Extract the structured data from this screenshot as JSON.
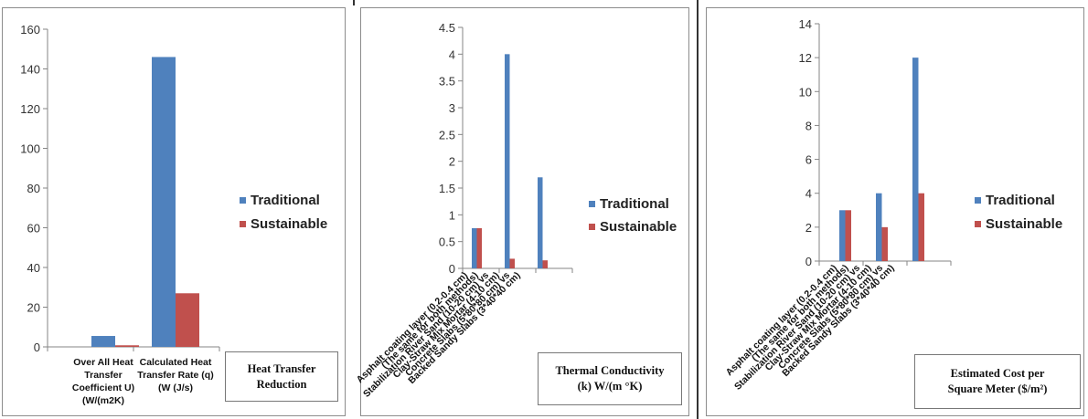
{
  "chart_data": [
    {
      "type": "bar",
      "title_lines": [
        "Heat Transfer",
        "Reduction"
      ],
      "categories": [
        [
          "Over All Heat",
          "Transfer",
          "Coefficient U)",
          "(W/(m2K)"
        ],
        [
          "Calculated Heat",
          "Transfer Rate (q)",
          "(W (J/s)"
        ]
      ],
      "series": [
        {
          "name": "Traditional",
          "values": [
            5.5,
            146
          ],
          "color": "#4f81bd"
        },
        {
          "name": "Sustainable",
          "values": [
            0.8,
            27
          ],
          "color": "#c0504d"
        }
      ],
      "ylim": [
        0,
        160
      ],
      "yticks": [
        "0",
        "20",
        "40",
        "60",
        "80",
        "100",
        "120",
        "140",
        "160"
      ],
      "grid": false,
      "legend_position": "right"
    },
    {
      "type": "bar",
      "title_lines": [
        "Thermal Conductivity",
        "(k) W/(m °K)"
      ],
      "categories": [
        "Asphalt coating layer (0.2-0.4 cm)",
        "(The same for both methods)",
        "Stabilization River Sand (10-20 cm) vs",
        "Clay-Straw Mix Mortar  (4-10 cm)",
        "Concrete Slabs (5*80*80 cm) vs",
        "Backed Sandy Slabs (3*40*40 cm)"
      ],
      "series": [
        {
          "name": "Traditional",
          "values": [
            0.75,
            null,
            4.0,
            null,
            1.7,
            null
          ],
          "color": "#4f81bd"
        },
        {
          "name": "Sustainable",
          "values": [
            0.75,
            null,
            0.18,
            null,
            0.15,
            null
          ],
          "color": "#c0504d"
        }
      ],
      "ylim": [
        0,
        4.5
      ],
      "yticks": [
        "0",
        "0.5",
        "1",
        "1.5",
        "2",
        "2.5",
        "3",
        "3.5",
        "4",
        "4.5"
      ],
      "grid": false,
      "legend_position": "right"
    },
    {
      "type": "bar",
      "title_lines": [
        "Estimated Cost per",
        "Square Meter ($/m²)"
      ],
      "categories": [
        "Asphalt coating layer (0.2-0.4 cm)",
        "(The same for both methods)",
        "Stabilization River Sand (10-20 cm)  vs",
        "Clay-Straw Mix Mortar  (4-10 cm)",
        "Concrete Slabs (5*80*80 cm)  vs",
        "Backed Sandy Slabs (3*40*40 cm)"
      ],
      "series": [
        {
          "name": "Traditional",
          "values": [
            3,
            null,
            4,
            null,
            12,
            null
          ],
          "color": "#4f81bd"
        },
        {
          "name": "Sustainable",
          "values": [
            3,
            null,
            2,
            null,
            4,
            null
          ],
          "color": "#c0504d"
        }
      ],
      "ylim": [
        0,
        14
      ],
      "yticks": [
        "0",
        "2",
        "4",
        "6",
        "8",
        "10",
        "12",
        "14"
      ],
      "grid": false,
      "legend_position": "right"
    }
  ]
}
